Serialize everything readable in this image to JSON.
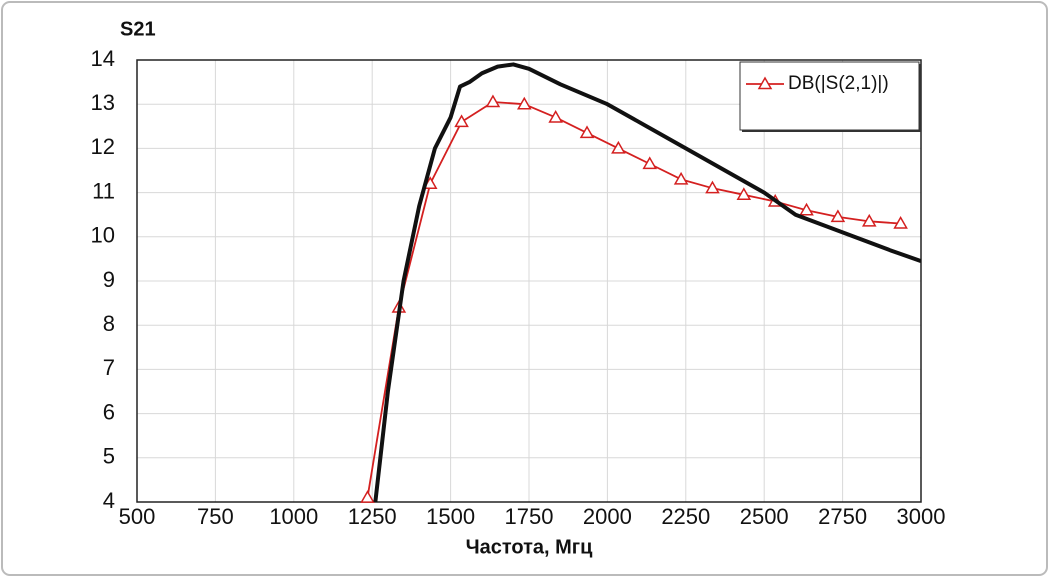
{
  "chart_data": {
    "type": "line",
    "y_axis_label": "S21",
    "x_axis_label": "Частота, Мгц",
    "xlim": [
      500,
      3000
    ],
    "xticks": [
      500,
      750,
      1000,
      1250,
      1500,
      1750,
      2000,
      2250,
      2500,
      2750,
      3000
    ],
    "ylim": [
      4,
      14
    ],
    "yticks": [
      4,
      5,
      6,
      7,
      8,
      9,
      10,
      11,
      12,
      13,
      14
    ],
    "grid": true,
    "legend": "upper right",
    "series": [
      {
        "name": "DB(|S(2,1)|)",
        "color": "#d42020",
        "marker": "triangle",
        "x": [
          1235,
          1335,
          1435,
          1535,
          1635,
          1735,
          1835,
          1935,
          2035,
          2135,
          2235,
          2335,
          2435,
          2535,
          2635,
          2735,
          2835,
          2935
        ],
        "values": [
          4.1,
          8.4,
          11.2,
          12.6,
          13.05,
          13.0,
          12.7,
          12.35,
          12.0,
          11.65,
          11.3,
          11.1,
          10.95,
          10.8,
          10.6,
          10.45,
          10.35,
          10.3
        ]
      },
      {
        "color": "#111111",
        "x": [
          1260,
          1300,
          1350,
          1400,
          1450,
          1500,
          1530,
          1560,
          1600,
          1650,
          1700,
          1750,
          1850,
          2000,
          2250,
          2500,
          2600,
          2750,
          2900,
          3000
        ],
        "values": [
          4.0,
          6.5,
          9.0,
          10.7,
          12.0,
          12.7,
          13.4,
          13.5,
          13.7,
          13.85,
          13.9,
          13.8,
          13.45,
          13.0,
          12.0,
          11.0,
          10.5,
          10.1,
          9.7,
          9.45
        ]
      }
    ]
  }
}
